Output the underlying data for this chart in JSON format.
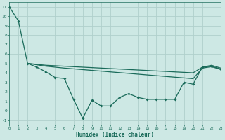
{
  "xlabel": "Humidex (Indice chaleur)",
  "background_color": "#cde8e4",
  "grid_color": "#b0d0cc",
  "line_color": "#1a6b5a",
  "xlim": [
    0,
    23
  ],
  "ylim": [
    -1.5,
    11.5
  ],
  "xticks": [
    0,
    1,
    2,
    3,
    4,
    5,
    6,
    7,
    8,
    9,
    10,
    11,
    12,
    13,
    14,
    15,
    16,
    17,
    18,
    19,
    20,
    21,
    22,
    23
  ],
  "yticks": [
    -1,
    0,
    1,
    2,
    3,
    4,
    5,
    6,
    7,
    8,
    9,
    10,
    11
  ],
  "line1_x": [
    0,
    1,
    2,
    3,
    4,
    5,
    6,
    7,
    8,
    9,
    10,
    11,
    12,
    13,
    14,
    15,
    16,
    17,
    18,
    19,
    20,
    21,
    22,
    23
  ],
  "line1_y": [
    11,
    9.5,
    5.0,
    4.6,
    4.1,
    3.5,
    3.4,
    1.2,
    -0.8,
    1.1,
    0.5,
    0.5,
    1.4,
    1.8,
    1.4,
    1.2,
    1.2,
    1.2,
    1.2,
    3.0,
    2.8,
    4.6,
    4.7,
    4.4
  ],
  "line2_x": [
    2,
    3,
    4,
    5,
    6,
    7,
    8,
    9,
    10,
    11,
    12,
    13,
    14,
    15,
    16,
    17,
    18,
    19,
    20,
    21,
    22,
    23
  ],
  "line2_y": [
    5.0,
    4.9,
    4.8,
    4.75,
    4.7,
    4.65,
    4.6,
    4.55,
    4.5,
    4.45,
    4.4,
    4.35,
    4.3,
    4.25,
    4.2,
    4.15,
    4.1,
    4.05,
    4.0,
    4.6,
    4.8,
    4.5
  ],
  "line3_x": [
    2,
    3,
    4,
    5,
    6,
    7,
    8,
    9,
    10,
    11,
    12,
    13,
    14,
    15,
    16,
    17,
    18,
    19,
    20,
    21,
    22,
    23
  ],
  "line3_y": [
    5.0,
    4.85,
    4.7,
    4.6,
    4.5,
    4.42,
    4.34,
    4.26,
    4.18,
    4.1,
    4.02,
    3.94,
    3.86,
    3.78,
    3.7,
    3.62,
    3.54,
    3.46,
    3.38,
    4.5,
    4.65,
    4.35
  ]
}
